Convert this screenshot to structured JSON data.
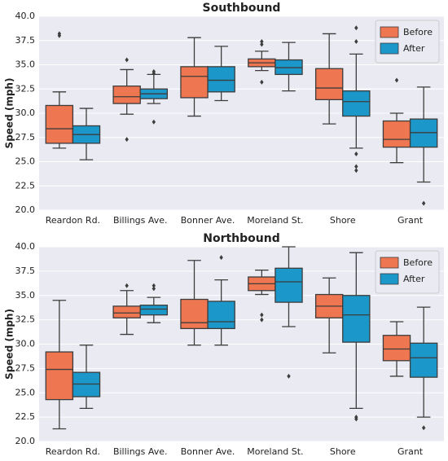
{
  "chart_data": [
    {
      "type": "box",
      "title": "Southbound",
      "ylabel": "Speed (mph)",
      "categories": [
        "Reardon Rd.",
        "Billings Ave.",
        "Bonner Ave.",
        "Moreland St.",
        "Shore",
        "Grant"
      ],
      "ylim": [
        20,
        40
      ],
      "yticks": [
        {
          "value": 20,
          "label": "20.0"
        },
        22.5,
        {
          "value": 25,
          "label": "25.0"
        },
        27.5,
        {
          "value": 30,
          "label": "30.0"
        },
        32.5,
        {
          "value": 35,
          "label": "35.0"
        },
        37.5,
        {
          "value": 40,
          "label": "40.0"
        }
      ],
      "grid": true,
      "legend": "upper right",
      "series": [
        {
          "name": "Before",
          "color": "#ee7650",
          "values": [
            {
              "low": 26.4,
              "q1": 26.9,
              "median": 28.4,
              "q3": 30.8,
              "high": 32.2,
              "outliers": [
                38.2,
                38.0
              ]
            },
            {
              "low": 29.9,
              "q1": 31.0,
              "median": 31.7,
              "q3": 32.8,
              "high": 34.5,
              "outliers": [
                35.5,
                27.3
              ]
            },
            {
              "low": 29.7,
              "q1": 31.6,
              "median": 33.8,
              "q3": 34.8,
              "high": 37.8,
              "outliers": []
            },
            {
              "low": 34.4,
              "q1": 34.8,
              "median": 35.2,
              "q3": 35.6,
              "high": 36.4,
              "outliers": [
                37.4,
                37.1,
                33.2
              ]
            },
            {
              "low": 28.9,
              "q1": 31.4,
              "median": 32.6,
              "q3": 34.6,
              "high": 38.2,
              "outliers": []
            },
            {
              "low": 24.9,
              "q1": 26.5,
              "median": 27.3,
              "q3": 29.2,
              "high": 30.0,
              "outliers": [
                33.4
              ]
            }
          ]
        },
        {
          "name": "After",
          "color": "#1b97c9",
          "values": [
            {
              "low": 25.2,
              "q1": 26.9,
              "median": 27.8,
              "q3": 28.7,
              "high": 30.5,
              "outliers": []
            },
            {
              "low": 31.0,
              "q1": 31.5,
              "median": 32.0,
              "q3": 32.5,
              "high": 34.0,
              "outliers": [
                34.3,
                34.1,
                29.1
              ]
            },
            {
              "low": 31.3,
              "q1": 32.2,
              "median": 33.4,
              "q3": 34.8,
              "high": 36.9,
              "outliers": []
            },
            {
              "low": 32.3,
              "q1": 34.0,
              "median": 34.7,
              "q3": 35.5,
              "high": 37.3,
              "outliers": []
            },
            {
              "low": 26.4,
              "q1": 29.7,
              "median": 31.2,
              "q3": 32.3,
              "high": 36.1,
              "outliers": [
                38.8,
                37.4,
                25.8,
                24.5,
                24.1
              ]
            },
            {
              "low": 22.9,
              "q1": 26.5,
              "median": 28.0,
              "q3": 29.4,
              "high": 32.7,
              "outliers": [
                20.7
              ]
            }
          ]
        }
      ]
    },
    {
      "type": "box",
      "title": "Northbound",
      "ylabel": "Speed (mph)",
      "categories": [
        "Reardon Rd.",
        "Billings Ave.",
        "Bonner Ave.",
        "Moreland St.",
        "Shore",
        "Grant"
      ],
      "ylim": [
        20,
        40
      ],
      "yticks": [
        {
          "value": 20,
          "label": "20.0"
        },
        22.5,
        {
          "value": 25,
          "label": "25.0"
        },
        27.5,
        {
          "value": 30,
          "label": "30.0"
        },
        32.5,
        {
          "value": 35,
          "label": "35.0"
        },
        37.5,
        {
          "value": 40,
          "label": "40.0"
        }
      ],
      "grid": true,
      "legend": "upper right",
      "series": [
        {
          "name": "Before",
          "color": "#ee7650",
          "values": [
            {
              "low": 21.3,
              "q1": 24.3,
              "median": 27.4,
              "q3": 29.2,
              "high": 34.5,
              "outliers": []
            },
            {
              "low": 31.0,
              "q1": 32.7,
              "median": 33.2,
              "q3": 33.9,
              "high": 35.5,
              "outliers": [
                36.0
              ]
            },
            {
              "low": 29.9,
              "q1": 31.6,
              "median": 32.2,
              "q3": 34.6,
              "high": 38.6,
              "outliers": []
            },
            {
              "low": 35.1,
              "q1": 35.5,
              "median": 36.2,
              "q3": 36.9,
              "high": 37.6,
              "outliers": [
                33.0,
                32.5
              ]
            },
            {
              "low": 29.1,
              "q1": 32.7,
              "median": 33.9,
              "q3": 35.1,
              "high": 36.8,
              "outliers": []
            },
            {
              "low": 26.7,
              "q1": 28.3,
              "median": 29.5,
              "q3": 30.9,
              "high": 32.3,
              "outliers": []
            }
          ]
        },
        {
          "name": "After",
          "color": "#1b97c9",
          "values": [
            {
              "low": 23.4,
              "q1": 24.6,
              "median": 25.9,
              "q3": 27.1,
              "high": 29.9,
              "outliers": []
            },
            {
              "low": 32.2,
              "q1": 33.0,
              "median": 33.6,
              "q3": 34.0,
              "high": 34.8,
              "outliers": [
                36.0,
                35.7
              ]
            },
            {
              "low": 29.9,
              "q1": 31.6,
              "median": 32.3,
              "q3": 34.4,
              "high": 36.6,
              "outliers": [
                38.9
              ]
            },
            {
              "low": 31.8,
              "q1": 34.3,
              "median": 36.4,
              "q3": 37.8,
              "high": 40.0,
              "outliers": [
                26.7
              ]
            },
            {
              "low": 23.4,
              "q1": 30.2,
              "median": 33.0,
              "q3": 35.0,
              "high": 39.4,
              "outliers": [
                22.5,
                22.3
              ]
            },
            {
              "low": 22.5,
              "q1": 26.6,
              "median": 28.6,
              "q3": 30.1,
              "high": 33.8,
              "outliers": [
                21.4
              ]
            }
          ]
        }
      ]
    }
  ]
}
